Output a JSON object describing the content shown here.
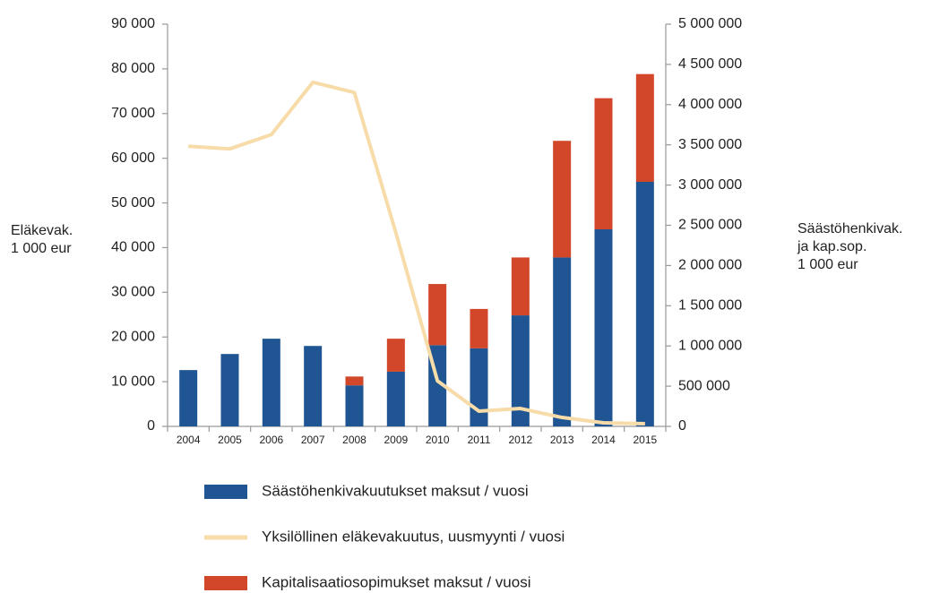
{
  "chart_data": {
    "type": "bar",
    "categories": [
      "2004",
      "2005",
      "2006",
      "2007",
      "2008",
      "2009",
      "2010",
      "2011",
      "2012",
      "2013",
      "2014",
      "2015"
    ],
    "ylabel": [
      "Eläkevak.",
      "1 000 eur"
    ],
    "y2label": [
      "Säästöhenkivak.",
      "ja kap.sop.",
      "1 000 eur"
    ],
    "ylim": [
      0,
      90000
    ],
    "yticks": [
      0,
      {
        "value": 10000,
        "label": "10 000"
      },
      {
        "value": 20000,
        "label": "20 000"
      },
      {
        "value": 30000,
        "label": "30 000"
      },
      {
        "value": 40000,
        "label": "40 000"
      },
      {
        "value": 50000,
        "label": "50 000"
      },
      {
        "value": 60000,
        "label": "60 000"
      },
      {
        "value": 70000,
        "label": "70 000"
      },
      {
        "value": 80000,
        "label": "80 000"
      },
      {
        "value": 90000,
        "label": "90 000"
      }
    ],
    "y2lim": [
      0,
      5000000
    ],
    "y2ticks": [
      0,
      {
        "value": 500000,
        "label": "500 000"
      },
      {
        "value": 1000000,
        "label": "1 000 000"
      },
      {
        "value": 1500000,
        "label": "1 500 000"
      },
      {
        "value": 2000000,
        "label": "2 000 000"
      },
      {
        "value": 2500000,
        "label": "2 500 000"
      },
      {
        "value": 3000000,
        "label": "3 000 000"
      },
      {
        "value": 3500000,
        "label": "3 500 000"
      },
      {
        "value": 4000000,
        "label": "4 000 000"
      },
      {
        "value": 4500000,
        "label": "4 500 000"
      },
      {
        "value": 5000000,
        "label": "5 000 000"
      }
    ],
    "series": [
      {
        "name": "Säästöhenkivakuutukset maksut / vuosi",
        "type": "bar",
        "axis": "y2",
        "color": "#1f5592",
        "values": [
          700000,
          900000,
          1090000,
          1000000,
          510000,
          680000,
          1010000,
          970000,
          1380000,
          2100000,
          2450000,
          3040000
        ]
      },
      {
        "name": "Yksilöllinen eläkevakuutus, uusmyynti / vuosi",
        "type": "line",
        "axis": "y",
        "color": "#f7dcaa",
        "values": [
          62700,
          62100,
          65300,
          77000,
          74700,
          43300,
          10200,
          3400,
          4000,
          2000,
          800,
          600
        ]
      },
      {
        "name": "Kapitalisaatiosopimukset maksut / vuosi",
        "type": "bar",
        "axis": "y2",
        "color": "#d2472a",
        "values": [
          0,
          0,
          0,
          0,
          110000,
          410000,
          760000,
          490000,
          720000,
          1450000,
          1630000,
          1340000
        ]
      }
    ]
  }
}
